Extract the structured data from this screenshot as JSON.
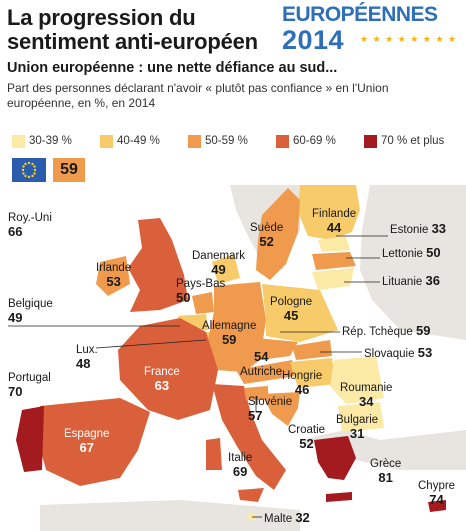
{
  "title_line1": "La progression du",
  "title_line2": "sentiment anti-européen",
  "subtitle": "Union européenne : une nette défiance au sud...",
  "description": "Part des personnes déclarant n'avoir « plutôt pas confiance » en l'Union européenne, en %, en 2014",
  "logo": {
    "line1": "EUROPÉENNES",
    "line2": "2014"
  },
  "legend": [
    {
      "label": "30-39 %",
      "color": "#fbe9a6"
    },
    {
      "label": "40-49 %",
      "color": "#f8cb6a"
    },
    {
      "label": "50-59 %",
      "color": "#ef9a4d"
    },
    {
      "label": "60-69 %",
      "color": "#d9603a"
    },
    {
      "label": "70 % et plus",
      "color": "#a31a1f"
    }
  ],
  "eu_value": "59",
  "colors": {
    "sea": "#ffffff",
    "land_nonEU": "#e8e4df",
    "flag_blue": "#2b5cad",
    "flag_star": "#f7d31d"
  },
  "countries": {
    "roy_uni": {
      "name": "Roy.-Uni",
      "value": "66"
    },
    "irlande": {
      "name": "Irlande",
      "value": "53"
    },
    "belgique": {
      "name": "Belgique",
      "value": "49"
    },
    "lux": {
      "name": "Lux.",
      "value": "48"
    },
    "portugal": {
      "name": "Portugal",
      "value": "70"
    },
    "espagne": {
      "name": "Espagne",
      "value": "67"
    },
    "france": {
      "name": "France",
      "value": "63"
    },
    "danemark": {
      "name": "Danemark",
      "value": "49"
    },
    "pays_bas": {
      "name": "Pays-Bas",
      "value": "50"
    },
    "allemagne": {
      "name": "Allemagne",
      "value": "59"
    },
    "suede": {
      "name": "Suède",
      "value": "52"
    },
    "finlande": {
      "name": "Finlande",
      "value": "44"
    },
    "estonie": {
      "name": "Estonie",
      "value": "33"
    },
    "lettonie": {
      "name": "Lettonie",
      "value": "50"
    },
    "lituanie": {
      "name": "Lituanie",
      "value": "36"
    },
    "pologne": {
      "name": "Pologne",
      "value": "45"
    },
    "rep_tcheque": {
      "name": "Rép. Tchèque",
      "value": "59"
    },
    "slovaquie": {
      "name": "Slovaquie",
      "value": "53"
    },
    "autriche": {
      "name": "Autriche",
      "value": "54"
    },
    "hongrie": {
      "name": "Hongrie",
      "value": "46"
    },
    "roumanie": {
      "name": "Roumanie",
      "value": "34"
    },
    "bulgarie": {
      "name": "Bulgarie",
      "value": "31"
    },
    "slovenie": {
      "name": "Slovénie",
      "value": "57"
    },
    "croatie": {
      "name": "Croatie",
      "value": "52"
    },
    "italie": {
      "name": "Italie",
      "value": "69"
    },
    "grece": {
      "name": "Grèce",
      "value": "81"
    },
    "chypre": {
      "name": "Chypre",
      "value": "74"
    },
    "malte": {
      "name": "Malte",
      "value": "32"
    }
  }
}
